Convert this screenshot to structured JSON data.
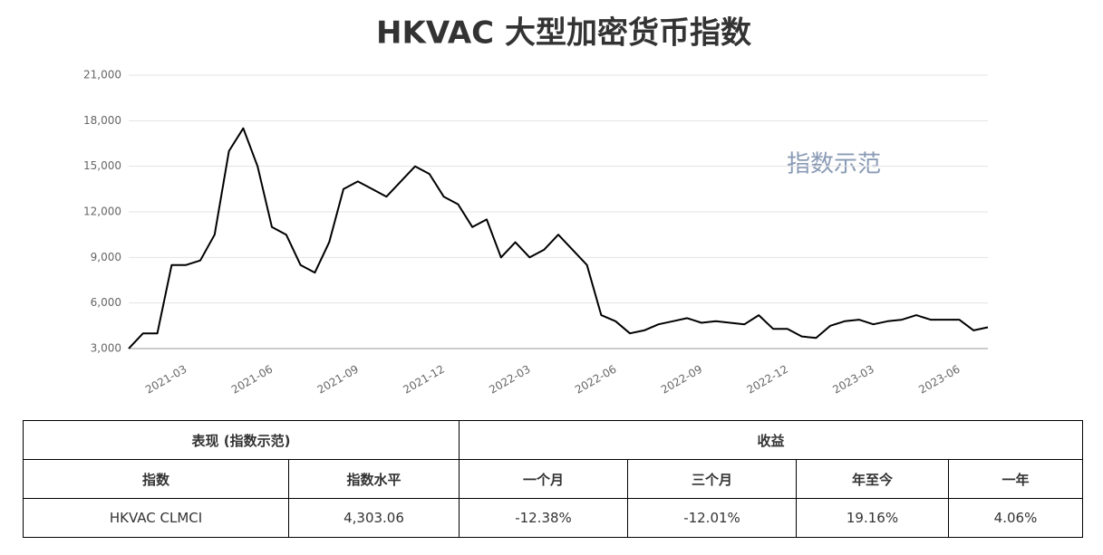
{
  "chart_data": {
    "type": "line",
    "title": "HKVAC 大型加密货币指数",
    "annotation": "指数示范",
    "categories": [
      null,
      null,
      null,
      null,
      "2021-03",
      null,
      null,
      null,
      null,
      null,
      "2021-06",
      null,
      null,
      null,
      null,
      null,
      "2021-09",
      null,
      null,
      null,
      null,
      null,
      "2021-12",
      null,
      null,
      null,
      null,
      null,
      "2022-03",
      null,
      null,
      null,
      null,
      null,
      "2022-06",
      null,
      null,
      null,
      null,
      null,
      "2022-09",
      null,
      null,
      null,
      null,
      null,
      "2022-12",
      null,
      null,
      null,
      null,
      null,
      "2023-03",
      null,
      null,
      null,
      null,
      null,
      "2023-06",
      null,
      null
    ],
    "values": [
      3000,
      4000,
      4000,
      8500,
      8500,
      8800,
      10500,
      16000,
      17500,
      15000,
      11000,
      10500,
      8500,
      8000,
      10000,
      13500,
      14000,
      13500,
      13000,
      14000,
      15000,
      14500,
      13000,
      12500,
      11000,
      11500,
      9000,
      10000,
      9000,
      9500,
      10500,
      9500,
      8500,
      5200,
      4800,
      4000,
      4200,
      4600,
      4800,
      5000,
      4700,
      4800,
      4700,
      4600,
      5200,
      4300,
      4300,
      3800,
      3700,
      4500,
      4800,
      4900,
      4600,
      4800,
      4900,
      5200,
      4900,
      4900,
      4900,
      4200,
      4400
    ],
    "color": "#000000",
    "ylim": [
      3000,
      21000
    ],
    "yticks": [
      {
        "value": 3000,
        "label": "3,000"
      },
      {
        "value": 6000,
        "label": "6,000"
      },
      {
        "value": 9000,
        "label": "9,000"
      },
      {
        "value": 12000,
        "label": "12,000"
      },
      {
        "value": 15000,
        "label": "15,000"
      },
      {
        "value": 18000,
        "label": "18,000"
      },
      {
        "value": 21000,
        "label": "21,000"
      }
    ],
    "grid": true
  },
  "table": {
    "group_headers": [
      "表现 (指数示范)",
      "收益"
    ],
    "headers": [
      "指数",
      "指数水平",
      "一个月",
      "三个月",
      "年至今",
      "一年"
    ],
    "rows": [
      [
        "HKVAC CLMCI",
        "4,303.06",
        "-12.38%",
        "-12.01%",
        "19.16%",
        "4.06%"
      ]
    ]
  }
}
